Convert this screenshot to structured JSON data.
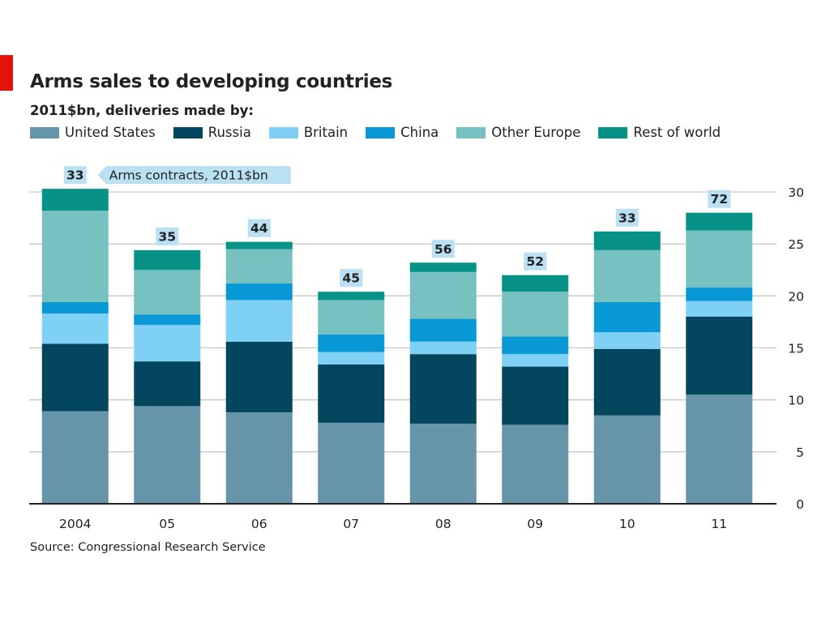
{
  "header": {
    "title": "Arms sales to developing countries",
    "subtitle": "2011$bn, deliveries made by:"
  },
  "annotation": "Arms contracts, 2011$bn",
  "source": "Source: Congressional Research Service",
  "colors": {
    "United States": "#6694a8",
    "Russia": "#05465f",
    "Britain": "#7ed0f4",
    "China": "#0898d6",
    "Other Europe": "#77c1c1",
    "Rest of world": "#069286",
    "label_box": "#b9e0f3",
    "accent": "#e3120b"
  },
  "chart_data": {
    "type": "bar",
    "stacked": true,
    "title": "Arms sales to developing countries",
    "subtitle": "2011$bn, deliveries made by:",
    "categories": [
      "2004",
      "05",
      "06",
      "07",
      "08",
      "09",
      "10",
      "11"
    ],
    "yticks": [
      "0",
      "5",
      "10",
      "15",
      "20",
      "25",
      "30"
    ],
    "ylim": [
      0,
      30
    ],
    "y_axis_side": "right",
    "grid": true,
    "legend_position": "top",
    "series": [
      {
        "name": "United States",
        "values": [
          8.9,
          9.4,
          8.8,
          7.8,
          7.7,
          7.6,
          8.5,
          10.5
        ]
      },
      {
        "name": "Russia",
        "values": [
          6.5,
          4.3,
          6.8,
          5.6,
          6.7,
          5.6,
          6.4,
          7.5
        ]
      },
      {
        "name": "Britain",
        "values": [
          2.9,
          3.5,
          4.0,
          1.2,
          1.2,
          1.2,
          1.6,
          1.5
        ]
      },
      {
        "name": "China",
        "values": [
          1.1,
          1.0,
          1.6,
          1.7,
          2.2,
          1.7,
          2.9,
          1.3
        ]
      },
      {
        "name": "Other Europe",
        "values": [
          8.8,
          4.3,
          3.3,
          3.3,
          4.5,
          4.3,
          5.0,
          5.5
        ]
      },
      {
        "name": "Rest of world",
        "values": [
          2.1,
          1.9,
          0.7,
          0.8,
          0.9,
          1.6,
          1.8,
          1.7
        ]
      }
    ],
    "contracts_label": "Arms contracts, 2011$bn",
    "contracts": [
      "33",
      "35",
      "44",
      "45",
      "56",
      "52",
      "33",
      "72"
    ]
  }
}
